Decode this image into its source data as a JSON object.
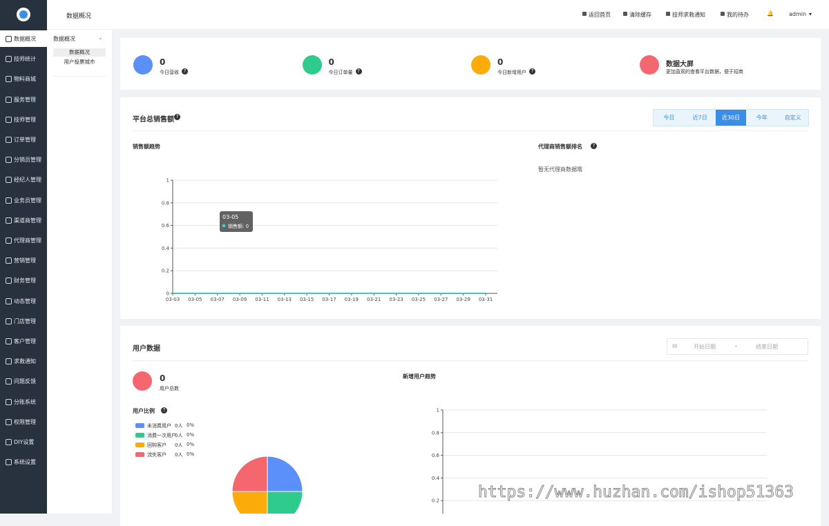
{
  "sidebar": {
    "menu": [
      "数据概况",
      "技师统计",
      "物料商城",
      "服务管理",
      "技师管理",
      "订单管理",
      "分销员管理",
      "经纪人管理",
      "业务员管理",
      "渠道商管理",
      "代理商管理",
      "营销管理",
      "财务管理",
      "动态管理",
      "门店管理",
      "客户管理",
      "求救通知",
      "问题反馈",
      "分账系统",
      "权限管理",
      "DIY设置",
      "系统设置"
    ]
  },
  "subnav": {
    "title": "数据概况",
    "group": "数据概况",
    "items": [
      "数据概况",
      "用户投票城市"
    ]
  },
  "header": {
    "links": [
      "返回首页",
      "清除缓存",
      "技师求救通知",
      "我的待办"
    ],
    "user": "admin"
  },
  "stats": [
    {
      "value": 0,
      "label": "今日营收"
    },
    {
      "value": 0,
      "label": "今日订单量"
    },
    {
      "value": 0,
      "label": "今日新增用户"
    }
  ],
  "big_screen": {
    "title": "数据大屏",
    "desc": "更加直观的查看平台数据，便于招商"
  },
  "sales": {
    "title": "平台总销售额",
    "tabs": [
      "今日",
      "近7日",
      "近30日",
      "今年",
      "自定义"
    ]
  },
  "ranking": {
    "title": "代理商销售额排名",
    "empty": "暂无代理商数据哦"
  },
  "users": {
    "title": "用户数据",
    "date_start": "开始日期",
    "date_sep": "-",
    "date_end": "结束日期",
    "total": 0,
    "total_label": "用户总数",
    "ratio_title": "用户比例",
    "trend_title": "新增用户趋势"
  },
  "watermark": "https://www.huzhan.com/ishop51363",
  "chart_data": [
    {
      "type": "line",
      "title": "销售额趋势",
      "categories": [
        "03-03",
        "03-05",
        "03-07",
        "03-09",
        "03-11",
        "03-13",
        "03-15",
        "03-17",
        "03-19",
        "03-21",
        "03-23",
        "03-25",
        "03-27",
        "03-29",
        "03-31"
      ],
      "values": [
        0,
        0,
        0,
        0,
        0,
        0,
        0,
        0,
        0,
        0,
        0,
        0,
        0,
        0,
        0
      ],
      "color": "#36cbcb",
      "ylim": [
        0,
        1
      ],
      "yticks": [
        0,
        0.2,
        0.4,
        0.6,
        0.8,
        1
      ],
      "grid": true,
      "tooltip": {
        "title": "03-05",
        "label": "销售额: 0"
      }
    },
    {
      "type": "pie",
      "categories": [
        "未消费用户",
        "消费一次用户",
        "回购客户",
        "流失客户"
      ],
      "values": [
        0,
        0,
        0,
        0
      ],
      "value_labels": [
        "0%",
        "0%",
        "0%",
        "0%"
      ],
      "count_labels": [
        "0人",
        "0人",
        "0人",
        "0人"
      ],
      "colors": [
        "#5b8ff9",
        "#2fcb8c",
        "#fbab0a",
        "#f5676f"
      ]
    },
    {
      "type": "axis",
      "ylim": [
        0,
        1
      ],
      "yticks": [
        0.2,
        0.4,
        0.6,
        0.8,
        1
      ],
      "grid": true
    }
  ]
}
